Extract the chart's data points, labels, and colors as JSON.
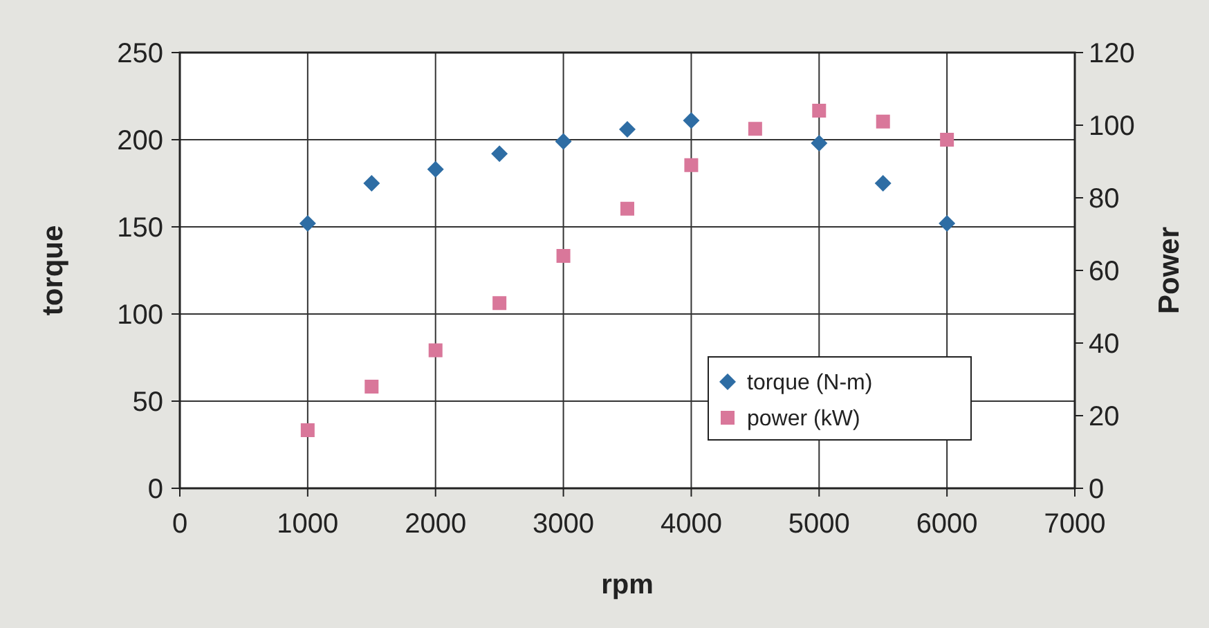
{
  "chart_data": {
    "type": "scatter",
    "xlabel": "rpm",
    "ylabel": "torque",
    "y2label": "Power",
    "x": [
      1000,
      1500,
      2000,
      2500,
      3000,
      3500,
      4000,
      4500,
      5000,
      5500,
      6000
    ],
    "series": [
      {
        "name": "torque (N-m)",
        "color": "#2e6da4",
        "marker": "diamond",
        "values": [
          152,
          175,
          183,
          192,
          199,
          206,
          211,
          null,
          198,
          175,
          152
        ]
      },
      {
        "name": "power (kW)",
        "color": "#d9779a",
        "marker": "square",
        "axis": "y2",
        "values": [
          16,
          28,
          38,
          51,
          64,
          77,
          89,
          99,
          104,
          101,
          96
        ]
      }
    ],
    "xlim": [
      0,
      7000
    ],
    "xticks": [
      0,
      1000,
      2000,
      3000,
      4000,
      5000,
      6000,
      7000
    ],
    "ylim": [
      0,
      250
    ],
    "yticks": [
      0,
      50,
      100,
      150,
      200,
      250
    ],
    "y2lim": [
      0,
      120
    ],
    "y2ticks": [
      0,
      20,
      40,
      60,
      80,
      100,
      120
    ],
    "grid": true,
    "legend": "bottom right"
  }
}
